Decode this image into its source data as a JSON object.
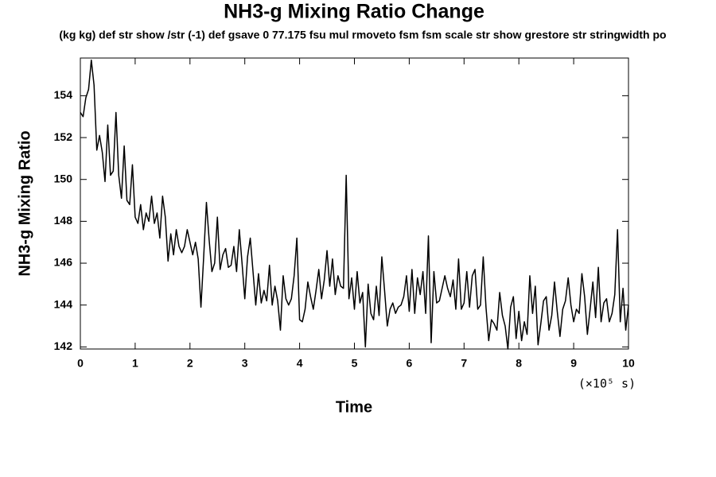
{
  "chart_data": {
    "type": "line",
    "title": "NH3-g Mixing Ratio Change",
    "subtitle": "(kg kg) def str show /str (-1) def gsave 0 77.175 fsu mul rmoveto fsm fsm scale str show grestore str stringwidth po",
    "x_label": "Time",
    "x_unit": "(×10⁵ s)",
    "y_label": "NH3-g Mixing Ratio",
    "color": "#000000",
    "xlim": [
      0,
      10
    ],
    "xticks": [
      0,
      1,
      2,
      3,
      4,
      5,
      6,
      7,
      8,
      9,
      10
    ],
    "ylim": [
      141.9,
      155.8
    ],
    "yticks": [
      142,
      144,
      146,
      148,
      150,
      152,
      154
    ],
    "x": [
      0,
      0.05,
      0.1,
      0.15,
      0.2,
      0.25,
      0.3,
      0.35,
      0.4,
      0.45,
      0.5,
      0.55,
      0.6,
      0.65,
      0.7,
      0.75,
      0.8,
      0.85,
      0.9,
      0.95,
      1,
      1.05,
      1.1,
      1.15,
      1.2,
      1.25,
      1.3,
      1.35,
      1.4,
      1.45,
      1.5,
      1.55,
      1.6,
      1.65,
      1.7,
      1.75,
      1.8,
      1.85,
      1.9,
      1.95,
      2,
      2.05,
      2.1,
      2.15,
      2.2,
      2.25,
      2.3,
      2.35,
      2.4,
      2.45,
      2.5,
      2.55,
      2.6,
      2.65,
      2.7,
      2.75,
      2.8,
      2.85,
      2.9,
      2.95,
      3,
      3.05,
      3.1,
      3.15,
      3.2,
      3.25,
      3.3,
      3.35,
      3.4,
      3.45,
      3.5,
      3.55,
      3.6,
      3.65,
      3.7,
      3.75,
      3.8,
      3.85,
      3.9,
      3.95,
      4,
      4.05,
      4.1,
      4.15,
      4.2,
      4.25,
      4.3,
      4.35,
      4.4,
      4.45,
      4.5,
      4.55,
      4.6,
      4.65,
      4.7,
      4.75,
      4.8,
      4.85,
      4.9,
      4.95,
      5,
      5.05,
      5.1,
      5.15,
      5.2,
      5.25,
      5.3,
      5.35,
      5.4,
      5.45,
      5.5,
      5.55,
      5.6,
      5.65,
      5.7,
      5.75,
      5.8,
      5.85,
      5.9,
      5.95,
      6,
      6.05,
      6.1,
      6.15,
      6.2,
      6.25,
      6.3,
      6.35,
      6.4,
      6.45,
      6.5,
      6.55,
      6.6,
      6.65,
      6.7,
      6.75,
      6.8,
      6.85,
      6.9,
      6.95,
      7,
      7.05,
      7.1,
      7.15,
      7.2,
      7.25,
      7.3,
      7.35,
      7.4,
      7.45,
      7.5,
      7.55,
      7.6,
      7.65,
      7.7,
      7.75,
      7.8,
      7.85,
      7.9,
      7.95,
      8,
      8.05,
      8.1,
      8.15,
      8.2,
      8.25,
      8.3,
      8.35,
      8.4,
      8.45,
      8.5,
      8.55,
      8.6,
      8.65,
      8.7,
      8.75,
      8.8,
      8.85,
      8.9,
      8.95,
      9,
      9.05,
      9.1,
      9.15,
      9.2,
      9.25,
      9.3,
      9.35,
      9.4,
      9.45,
      9.5,
      9.55,
      9.6,
      9.65,
      9.7,
      9.75,
      9.8,
      9.85,
      9.9,
      9.95,
      10
    ],
    "values": [
      153.2,
      153.0,
      153.9,
      154.3,
      155.7,
      154.5,
      151.4,
      152.1,
      151.3,
      149.9,
      152.6,
      150.2,
      150.4,
      153.2,
      150.2,
      149.1,
      151.6,
      149.0,
      148.8,
      150.7,
      148.2,
      147.9,
      148.8,
      147.6,
      148.4,
      148.0,
      149.2,
      147.9,
      148.4,
      147.2,
      149.2,
      148.2,
      146.1,
      147.4,
      146.4,
      147.6,
      146.8,
      146.5,
      146.8,
      147.6,
      147.0,
      146.4,
      147.0,
      146.2,
      143.9,
      146.3,
      148.9,
      147.1,
      145.6,
      146.0,
      148.2,
      145.7,
      146.4,
      146.7,
      145.8,
      145.9,
      146.8,
      145.6,
      147.6,
      146.0,
      144.3,
      146.3,
      147.2,
      145.6,
      144.0,
      145.5,
      144.1,
      144.7,
      144.2,
      145.9,
      144.0,
      144.9,
      144.2,
      142.8,
      145.4,
      144.3,
      144.0,
      144.3,
      145.4,
      147.2,
      143.3,
      143.2,
      143.8,
      145.1,
      144.4,
      143.8,
      144.7,
      145.7,
      144.3,
      145.2,
      146.6,
      144.9,
      146.2,
      144.5,
      145.4,
      144.9,
      144.8,
      150.2,
      144.3,
      145.3,
      143.8,
      145.6,
      144.1,
      144.6,
      142.0,
      145.0,
      143.6,
      143.3,
      144.9,
      143.5,
      146.3,
      144.7,
      143.0,
      143.8,
      144.1,
      143.6,
      143.9,
      144.0,
      144.4,
      145.4,
      143.7,
      145.7,
      143.6,
      145.3,
      144.5,
      145.6,
      143.6,
      147.3,
      142.2,
      145.6,
      144.1,
      144.2,
      144.8,
      145.4,
      144.8,
      144.4,
      145.2,
      143.8,
      146.2,
      143.8,
      144.1,
      145.6,
      143.9,
      145.4,
      145.7,
      143.8,
      144.0,
      146.3,
      143.9,
      142.3,
      143.3,
      143.1,
      142.8,
      144.6,
      143.5,
      143.0,
      141.9,
      143.9,
      144.4,
      142.4,
      143.7,
      142.3,
      143.2,
      142.6,
      145.4,
      143.6,
      144.9,
      142.1,
      143.1,
      144.2,
      144.4,
      142.8,
      143.5,
      145.1,
      143.7,
      142.5,
      143.8,
      144.2,
      145.3,
      144.0,
      143.2,
      143.8,
      143.6,
      145.5,
      144.4,
      142.6,
      143.8,
      145.1,
      143.4,
      145.8,
      143.2,
      144.1,
      144.3,
      143.2,
      143.6,
      144.5,
      147.6,
      143.2,
      144.8,
      142.8,
      144.0
    ]
  }
}
